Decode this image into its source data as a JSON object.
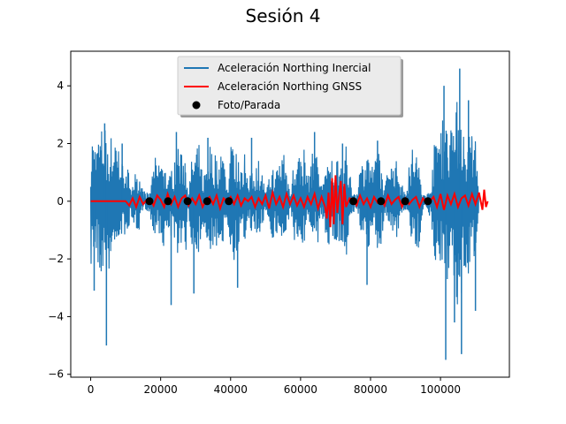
{
  "chart_data": {
    "type": "line",
    "title": "Sesión 4",
    "xlabel": "",
    "ylabel": "",
    "xlim": [
      -5700,
      119700
    ],
    "ylim": [
      -6.1,
      5.2
    ],
    "x_ticks": [
      0,
      20000,
      40000,
      60000,
      80000,
      100000
    ],
    "x_tick_labels": [
      "0",
      "20000",
      "40000",
      "60000",
      "80000",
      "100000"
    ],
    "y_ticks": [
      -6,
      -4,
      -2,
      0,
      2,
      4
    ],
    "y_tick_labels": [
      "−6",
      "−4",
      "−2",
      "0",
      "2",
      "4"
    ],
    "grid": false,
    "legend_position": "upper-center",
    "series": [
      {
        "name": "Aceleración Northing Inercial",
        "color": "#1f77b4",
        "style": "line",
        "x": [
          0,
          500,
          1000,
          2000,
          3000,
          4000,
          5000,
          6000,
          7000,
          8000,
          9000,
          10000,
          11000,
          12000,
          13000,
          14000,
          15000,
          16000,
          17000,
          18000,
          19000,
          20000,
          21000,
          22000,
          23000,
          24000,
          25000,
          26000,
          27000,
          28000,
          29000,
          30000,
          31000,
          32000,
          33000,
          34000,
          35000,
          36000,
          37000,
          38000,
          39000,
          40000,
          41000,
          42000,
          43000,
          44000,
          45000,
          46000,
          47000,
          48000,
          49000,
          50000,
          51000,
          52000,
          53000,
          54000,
          55000,
          56000,
          57000,
          58000,
          59000,
          60000,
          61000,
          62000,
          63000,
          64000,
          65000,
          66000,
          67000,
          68000,
          69000,
          70000,
          71000,
          72000,
          73000,
          74000,
          75000,
          76000,
          77000,
          78000,
          79000,
          80000,
          81000,
          82000,
          83000,
          84000,
          85000,
          86000,
          87000,
          88000,
          89000,
          90000,
          91000,
          92000,
          93000,
          94000,
          95000,
          96000,
          97000,
          98000,
          99000,
          100000,
          101000,
          102000,
          103000,
          104000,
          105000,
          106000,
          107000,
          108000,
          109000,
          110000,
          111000
        ],
        "amplitude_upper": [
          2.0,
          2.4,
          1.9,
          2.2,
          2.6,
          2.6,
          2.4,
          2.3,
          2.0,
          1.8,
          1.4,
          1.5,
          1.0,
          0.8,
          1.1,
          0.9,
          0.4,
          0.3,
          0.3,
          1.8,
          1.2,
          1.8,
          1.6,
          0.6,
          1.1,
          1.4,
          2.4,
          1.7,
          1.8,
          0.4,
          1.6,
          1.7,
          2.0,
          0.8,
          1.3,
          2.1,
          1.6,
          1.8,
          1.5,
          1.9,
          0.5,
          2.0,
          2.0,
          1.5,
          1.5,
          1.9,
          0.4,
          1.6,
          1.2,
          1.5,
          1.1,
          0.3,
          0.8,
          1.3,
          1.1,
          1.5,
          1.8,
          1.3,
          0.3,
          1.7,
          1.6,
          1.7,
          2.0,
          0.7,
          1.6,
          1.8,
          1.4,
          0.6,
          1.5,
          1.2,
          1.6,
          1.5,
          1.4,
          1.5,
          2.0,
          1.0,
          0.4,
          0.3,
          1.2,
          1.5,
          1.9,
          1.6,
          1.0,
          2.2,
          1.6,
          0.3,
          1.5,
          1.3,
          1.6,
          1.1,
          0.6,
          0.3,
          1.2,
          1.9,
          1.8,
          1.5,
          0.4,
          0.2,
          0.5,
          1.8,
          2.6,
          2.6,
          3.0,
          2.6,
          2.6,
          2.4,
          4.0,
          3.4,
          1.7,
          2.4,
          2.8,
          2.2,
          0.3
        ],
        "amplitude_lower": [
          -2.4,
          -2.0,
          -1.9,
          -2.2,
          -2.6,
          -2.5,
          -2.6,
          -2.2,
          -1.8,
          -1.5,
          -1.3,
          -1.1,
          -0.9,
          -0.7,
          -1.0,
          -1.0,
          -0.3,
          -0.3,
          -0.5,
          -1.3,
          -0.8,
          -1.4,
          -2.0,
          -0.8,
          -1.5,
          -1.8,
          -1.8,
          -1.4,
          -2.1,
          -0.4,
          -1.8,
          -1.9,
          -1.8,
          -0.8,
          -1.2,
          -2.0,
          -1.6,
          -1.6,
          -1.4,
          -1.8,
          -0.6,
          -1.8,
          -2.2,
          -1.6,
          -1.2,
          -1.8,
          -0.4,
          -1.6,
          -1.3,
          -1.1,
          -1.0,
          -0.3,
          -0.7,
          -1.5,
          -1.2,
          -1.3,
          -1.7,
          -1.3,
          -0.3,
          -1.5,
          -1.6,
          -1.2,
          -1.6,
          -0.6,
          -1.1,
          -1.3,
          -1.5,
          -0.5,
          -1.5,
          -1.5,
          -1.6,
          -1.6,
          -1.4,
          -1.7,
          -2.0,
          -0.8,
          -0.4,
          -0.3,
          -0.9,
          -1.7,
          -2.3,
          -1.3,
          -0.7,
          -1.8,
          -1.8,
          -0.3,
          -1.4,
          -1.5,
          -1.5,
          -1.2,
          -0.5,
          -0.3,
          -1.0,
          -1.5,
          -1.8,
          -1.6,
          -0.4,
          -0.2,
          -0.6,
          -2.0,
          -2.2,
          -2.6,
          -2.8,
          -3.0,
          -3.5,
          -3.6,
          -4.0,
          -3.6,
          -2.5,
          -2.6,
          -2.0,
          -2.0,
          -0.3
        ],
        "spikes": [
          {
            "x": 1000,
            "y": -3.1
          },
          {
            "x": 4000,
            "y": 2.7
          },
          {
            "x": 4500,
            "y": -5.0
          },
          {
            "x": 9000,
            "y": 2.0
          },
          {
            "x": 23000,
            "y": -3.6
          },
          {
            "x": 24500,
            "y": 2.4
          },
          {
            "x": 29500,
            "y": -3.2
          },
          {
            "x": 33500,
            "y": 2.2
          },
          {
            "x": 42000,
            "y": -3.0
          },
          {
            "x": 46000,
            "y": 2.2
          },
          {
            "x": 64000,
            "y": 2.4
          },
          {
            "x": 72000,
            "y": 2.0
          },
          {
            "x": 79000,
            "y": -2.9
          },
          {
            "x": 82000,
            "y": 2.1
          },
          {
            "x": 101000,
            "y": 4.0
          },
          {
            "x": 101500,
            "y": -5.5
          },
          {
            "x": 104000,
            "y": -4.2
          },
          {
            "x": 105500,
            "y": 4.6
          },
          {
            "x": 106000,
            "y": -5.3
          },
          {
            "x": 108000,
            "y": 3.5
          },
          {
            "x": 110000,
            "y": -3.8
          }
        ]
      },
      {
        "name": "Aceleración Northing GNSS",
        "color": "#ff0000",
        "style": "line",
        "x": [
          0,
          10000,
          11000,
          12000,
          13000,
          14000,
          15000,
          16000,
          17000,
          18000,
          19000,
          20000,
          21000,
          22000,
          23000,
          24000,
          25000,
          26000,
          27000,
          28000,
          29000,
          30000,
          31000,
          32000,
          33000,
          34000,
          35000,
          36000,
          37000,
          38000,
          39000,
          40000,
          41000,
          42000,
          43000,
          44000,
          45000,
          46000,
          47000,
          48000,
          49000,
          50000,
          51000,
          52000,
          53000,
          54000,
          55000,
          56000,
          57000,
          58000,
          59000,
          60000,
          61000,
          62000,
          63000,
          64000,
          65000,
          66000,
          67000,
          67500,
          68000,
          68500,
          69000,
          69500,
          70000,
          70500,
          71000,
          71500,
          72000,
          72500,
          73000,
          74000,
          75000,
          76000,
          77000,
          78000,
          79000,
          80000,
          81000,
          82000,
          83000,
          84000,
          85000,
          86000,
          87000,
          88000,
          89000,
          90000,
          91000,
          92000,
          93000,
          94000,
          95000,
          96000,
          97000,
          98000,
          99000,
          100000,
          101000,
          102000,
          103000,
          104000,
          105000,
          106000,
          107000,
          108000,
          109000,
          110000,
          111000,
          112000,
          112500,
          113000,
          113500
        ],
        "y": [
          0,
          0,
          -0.15,
          0.1,
          -0.2,
          0.15,
          -0.1,
          0.05,
          0.1,
          -0.15,
          0.2,
          0.05,
          -0.2,
          0.25,
          -0.1,
          0.15,
          -0.2,
          0.1,
          0.2,
          -0.15,
          0.1,
          -0.1,
          0.2,
          -0.2,
          0.05,
          0.15,
          -0.1,
          0.2,
          -0.25,
          0.1,
          0.0,
          0.15,
          -0.1,
          0.2,
          -0.15,
          0.1,
          0.0,
          0.15,
          -0.2,
          0.1,
          -0.1,
          0.2,
          -0.25,
          0.3,
          -0.1,
          0.15,
          -0.2,
          0.25,
          -0.1,
          0.2,
          -0.15,
          0.1,
          -0.2,
          0.15,
          -0.1,
          0.25,
          -0.25,
          0.15,
          -0.2,
          -0.6,
          0.3,
          -0.9,
          0.8,
          -0.8,
          0.9,
          -0.4,
          0.2,
          0.7,
          -0.8,
          0.6,
          -0.2,
          0.1,
          0.05,
          -0.15,
          0.2,
          -0.1,
          0.1,
          -0.2,
          0.15,
          -0.05,
          0.1,
          -0.15,
          0.2,
          -0.1,
          0.05,
          0.15,
          -0.2,
          0.1,
          -0.1,
          0.05,
          0.15,
          -0.2,
          0.1,
          -0.1,
          0.0,
          0.15,
          -0.2,
          0.25,
          -0.3,
          0.2,
          -0.1,
          0.25,
          -0.2,
          0.1,
          0.2,
          -0.15,
          0.25,
          -0.1,
          0.3,
          -0.3,
          0.4,
          -0.2,
          0.0
        ]
      },
      {
        "name": "Foto/Parada",
        "color": "#000000",
        "style": "markers",
        "x": [
          16800,
          22100,
          27700,
          33300,
          39500,
          75100,
          83000,
          89900,
          96400
        ],
        "y": [
          0,
          0,
          0,
          0,
          0,
          0,
          0,
          0,
          0
        ]
      }
    ]
  }
}
